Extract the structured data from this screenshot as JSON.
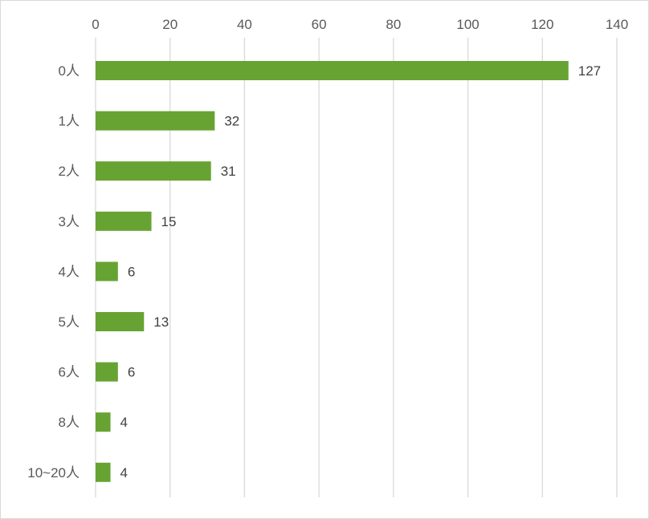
{
  "chart_data": {
    "type": "bar",
    "orientation": "horizontal",
    "title": "",
    "xlabel": "",
    "ylabel": "",
    "categories": [
      "0人",
      "1人",
      "2人",
      "3人",
      "4人",
      "5人",
      "6人",
      "8人",
      "10~20人"
    ],
    "values": [
      127,
      32,
      31,
      15,
      6,
      13,
      6,
      4,
      4
    ],
    "xlim": [
      0,
      140
    ],
    "x_ticks": [
      0,
      20,
      40,
      60,
      80,
      100,
      120,
      140
    ],
    "x_axis_position": "top",
    "grid": true,
    "data_labels": true,
    "legend": "none",
    "bar_color": "#67a332",
    "gridline_color": "#d9d9d9"
  }
}
